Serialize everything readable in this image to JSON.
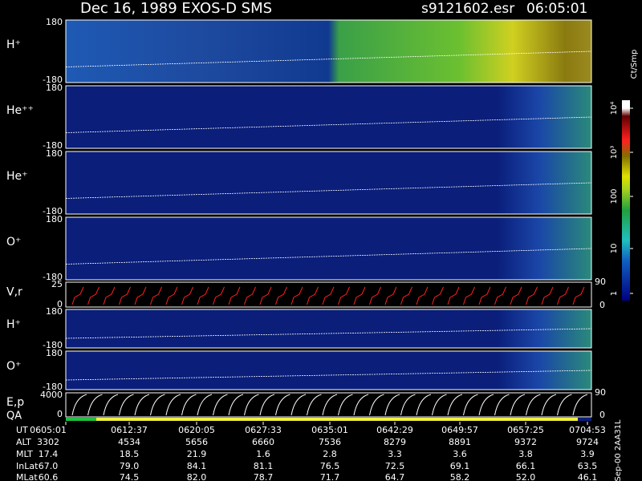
{
  "header": {
    "title": "Dec 16, 1989   EXOS-D SMS",
    "file": "s9121602.esr",
    "time": "06:05:01"
  },
  "panels": [
    {
      "label": "H⁺",
      "top": "180",
      "bottom": "-180"
    },
    {
      "label": "He⁺⁺",
      "top": "180",
      "bottom": "-180"
    },
    {
      "label": "He⁺",
      "top": "180",
      "bottom": "-180"
    },
    {
      "label": "O⁺",
      "top": "180",
      "bottom": "-180"
    },
    {
      "label": "V,r",
      "top": "25",
      "bottom": "0",
      "right_top": "90",
      "right_bottom": "0"
    },
    {
      "label": "H⁺",
      "top": "180",
      "bottom": "-180"
    },
    {
      "label": "O⁺",
      "top": "180",
      "bottom": "-180"
    },
    {
      "label": "E,p",
      "top": "4000",
      "bottom": "0",
      "right_top": "90",
      "right_bottom": "0"
    }
  ],
  "qa_label": "QA",
  "colorbar": {
    "unit": "Ct/Smp",
    "ticks": [
      "10⁴",
      "10³",
      "100",
      "10",
      "1"
    ]
  },
  "table": {
    "rows": [
      {
        "label": "UT",
        "values": [
          "0605:01",
          "0612:37",
          "0620:05",
          "0627:33",
          "0635:01",
          "0642:29",
          "0649:57",
          "0657:25",
          "0704:53"
        ]
      },
      {
        "label": "ALT",
        "values": [
          "3302",
          "4534",
          "5656",
          "6660",
          "7536",
          "8279",
          "8891",
          "9372",
          "9724"
        ]
      },
      {
        "label": "MLT",
        "values": [
          "17.4",
          "18.5",
          "21.9",
          "1.6",
          "2.8",
          "3.3",
          "3.6",
          "3.8",
          "3.9"
        ]
      },
      {
        "label": "InLat",
        "values": [
          "67.0",
          "79.0",
          "84.1",
          "81.1",
          "76.5",
          "72.5",
          "69.1",
          "66.1",
          "63.5"
        ]
      },
      {
        "label": "MLat",
        "values": [
          "60.6",
          "74.5",
          "82.0",
          "78.7",
          "71.7",
          "64.7",
          "58.2",
          "52.0",
          "46.1"
        ]
      }
    ]
  },
  "footer_code": "Sep-00 2AA31L"
}
